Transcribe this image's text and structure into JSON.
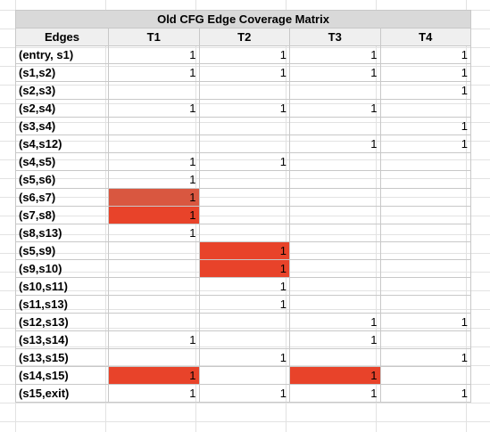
{
  "matrix": {
    "title": "Old CFG Edge Coverage Matrix",
    "header_edges": "Edges",
    "tests": [
      "T1",
      "T2",
      "T3",
      "T4"
    ],
    "highlight_color": "#e8432a",
    "rows": [
      {
        "edge": "(entry, s1)",
        "cells": [
          "1",
          "1",
          "1",
          "1"
        ],
        "hl": [
          false,
          false,
          false,
          false
        ]
      },
      {
        "edge": "(s1,s2)",
        "cells": [
          "1",
          "1",
          "1",
          "1"
        ],
        "hl": [
          false,
          false,
          false,
          false
        ]
      },
      {
        "edge": "(s2,s3)",
        "cells": [
          "",
          "",
          "",
          "1"
        ],
        "hl": [
          false,
          false,
          false,
          false
        ]
      },
      {
        "edge": "(s2,s4)",
        "cells": [
          "1",
          "1",
          "1",
          ""
        ],
        "hl": [
          false,
          false,
          false,
          false
        ]
      },
      {
        "edge": "(s3,s4)",
        "cells": [
          "",
          "",
          "",
          "1"
        ],
        "hl": [
          false,
          false,
          false,
          false
        ]
      },
      {
        "edge": "(s4,s12)",
        "cells": [
          "",
          "",
          "1",
          "1"
        ],
        "hl": [
          false,
          false,
          false,
          false
        ]
      },
      {
        "edge": "(s4,s5)",
        "cells": [
          "1",
          "1",
          "",
          ""
        ],
        "hl": [
          false,
          false,
          false,
          false
        ]
      },
      {
        "edge": "(s5,s6)",
        "cells": [
          "1",
          "",
          "",
          ""
        ],
        "hl": [
          false,
          false,
          false,
          false
        ]
      },
      {
        "edge": "(s6,s7)",
        "cells": [
          "1",
          "",
          "",
          ""
        ],
        "hl": [
          true,
          false,
          false,
          false
        ]
      },
      {
        "edge": "(s7,s8)",
        "cells": [
          "1",
          "",
          "",
          ""
        ],
        "hl": [
          true,
          false,
          false,
          false
        ]
      },
      {
        "edge": "(s8,s13)",
        "cells": [
          "1",
          "",
          "",
          ""
        ],
        "hl": [
          false,
          false,
          false,
          false
        ]
      },
      {
        "edge": "(s5,s9)",
        "cells": [
          "",
          "1",
          "",
          ""
        ],
        "hl": [
          false,
          true,
          false,
          false
        ]
      },
      {
        "edge": "(s9,s10)",
        "cells": [
          "",
          "1",
          "",
          ""
        ],
        "hl": [
          false,
          true,
          false,
          false
        ]
      },
      {
        "edge": "(s10,s11)",
        "cells": [
          "",
          "1",
          "",
          ""
        ],
        "hl": [
          false,
          false,
          false,
          false
        ]
      },
      {
        "edge": "(s11,s13)",
        "cells": [
          "",
          "1",
          "",
          ""
        ],
        "hl": [
          false,
          false,
          false,
          false
        ]
      },
      {
        "edge": "(s12,s13)",
        "cells": [
          "",
          "",
          "1",
          "1"
        ],
        "hl": [
          false,
          false,
          false,
          false
        ]
      },
      {
        "edge": "(s13,s14)",
        "cells": [
          "1",
          "",
          "1",
          ""
        ],
        "hl": [
          false,
          false,
          false,
          false
        ]
      },
      {
        "edge": "(s13,s15)",
        "cells": [
          "",
          "1",
          "",
          "1"
        ],
        "hl": [
          false,
          false,
          false,
          false
        ]
      },
      {
        "edge": "(s14,s15)",
        "cells": [
          "1",
          "",
          "1",
          ""
        ],
        "hl": [
          true,
          false,
          true,
          false
        ]
      },
      {
        "edge": "(s15,exit)",
        "cells": [
          "1",
          "1",
          "1",
          "1"
        ],
        "hl": [
          false,
          false,
          false,
          false
        ]
      }
    ]
  }
}
